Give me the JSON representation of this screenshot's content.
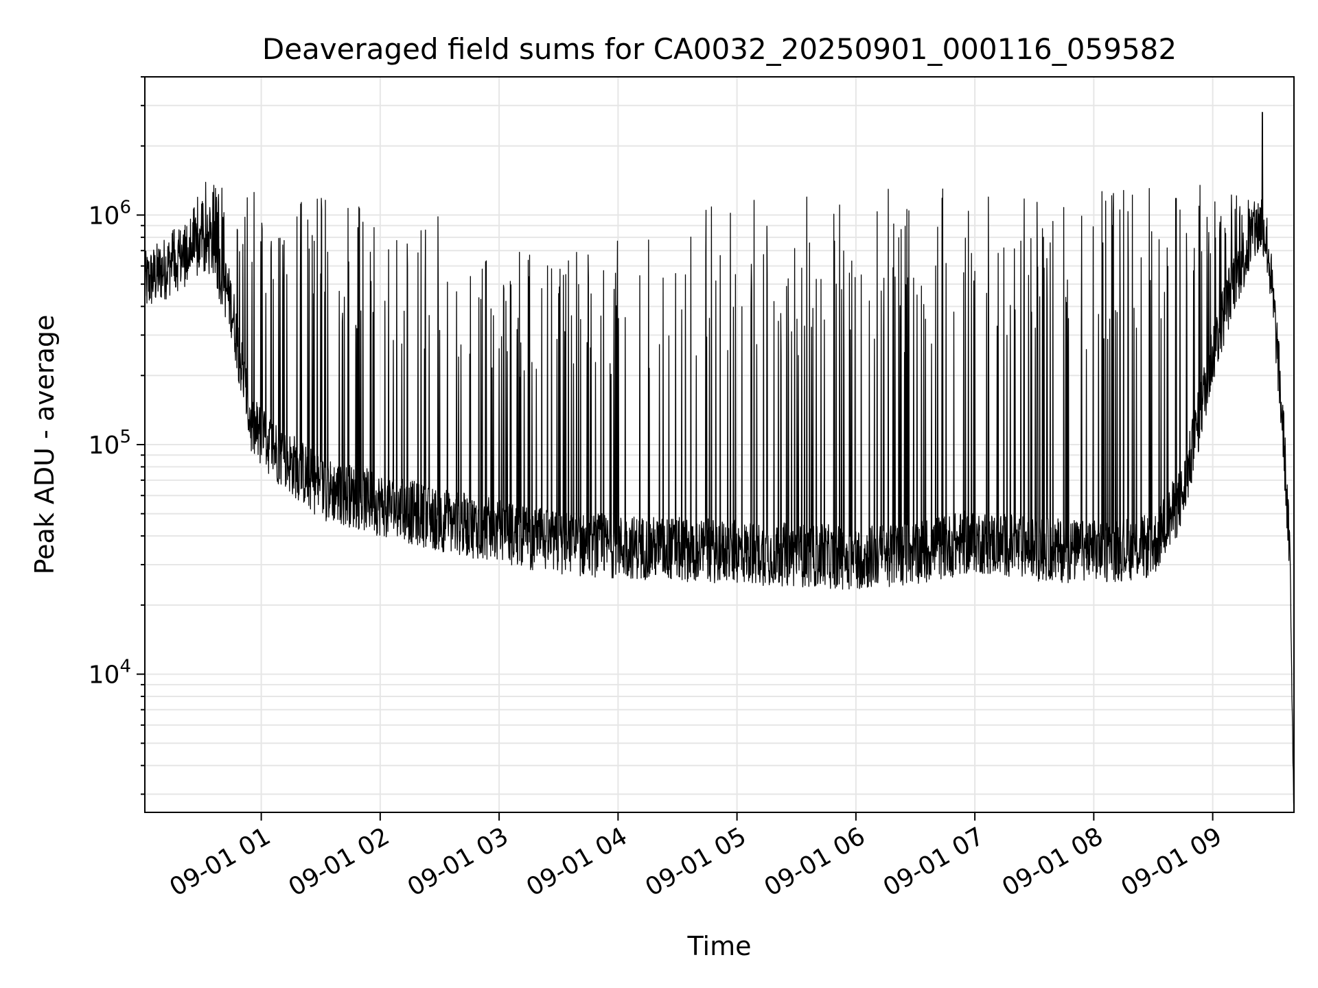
{
  "chart_data": {
    "type": "line",
    "title": "Deaveraged field sums for CA0032_20250901_000116_059582",
    "xlabel": "Time",
    "ylabel": "Peak ADU - average",
    "yscale": "log",
    "ylim": [
      2500,
      4000000
    ],
    "xlim": [
      "2025-09-01 00:01:16",
      "2025-09-01 09:41:00"
    ],
    "grid": "on (major and minor)",
    "line_color": "#000000",
    "grid_color": "#e6e6e6",
    "x_ticks": [
      {
        "t": "2025-09-01 01:00",
        "label": "09-01 01"
      },
      {
        "t": "2025-09-01 02:00",
        "label": "09-01 02"
      },
      {
        "t": "2025-09-01 03:00",
        "label": "09-01 03"
      },
      {
        "t": "2025-09-01 04:00",
        "label": "09-01 04"
      },
      {
        "t": "2025-09-01 05:00",
        "label": "09-01 05"
      },
      {
        "t": "2025-09-01 06:00",
        "label": "09-01 06"
      },
      {
        "t": "2025-09-01 07:00",
        "label": "09-01 07"
      },
      {
        "t": "2025-09-01 08:00",
        "label": "09-01 08"
      },
      {
        "t": "2025-09-01 09:00",
        "label": "09-01 09"
      }
    ],
    "y_ticks": [
      {
        "value": 10000,
        "base": "10",
        "exp": "4"
      },
      {
        "value": 100000,
        "base": "10",
        "exp": "5"
      },
      {
        "value": 1000000,
        "base": "10",
        "exp": "6"
      }
    ],
    "series": [
      {
        "name": "",
        "baseline": [
          {
            "t": "2025-09-01 00:01",
            "value": 500000
          },
          {
            "t": "2025-09-01 00:15",
            "value": 620000
          },
          {
            "t": "2025-09-01 00:25",
            "value": 700000
          },
          {
            "t": "2025-09-01 00:35",
            "value": 750000
          },
          {
            "t": "2025-09-01 00:45",
            "value": 400000
          },
          {
            "t": "2025-09-01 00:55",
            "value": 120000
          },
          {
            "t": "2025-09-01 01:10",
            "value": 90000
          },
          {
            "t": "2025-09-01 01:30",
            "value": 65000
          },
          {
            "t": "2025-09-01 02:00",
            "value": 55000
          },
          {
            "t": "2025-09-01 02:30",
            "value": 47000
          },
          {
            "t": "2025-09-01 03:00",
            "value": 42000
          },
          {
            "t": "2025-09-01 03:30",
            "value": 37000
          },
          {
            "t": "2025-09-01 04:00",
            "value": 36000
          },
          {
            "t": "2025-09-01 04:30",
            "value": 35000
          },
          {
            "t": "2025-09-01 05:00",
            "value": 34000
          },
          {
            "t": "2025-09-01 05:30",
            "value": 33000
          },
          {
            "t": "2025-09-01 06:00",
            "value": 32000
          },
          {
            "t": "2025-09-01 06:30",
            "value": 34000
          },
          {
            "t": "2025-09-01 07:00",
            "value": 38000
          },
          {
            "t": "2025-09-01 07:30",
            "value": 35000
          },
          {
            "t": "2025-09-01 08:00",
            "value": 34000
          },
          {
            "t": "2025-09-01 08:30",
            "value": 36000
          },
          {
            "t": "2025-09-01 08:45",
            "value": 60000
          },
          {
            "t": "2025-09-01 09:00",
            "value": 250000
          },
          {
            "t": "2025-09-01 09:10",
            "value": 500000
          },
          {
            "t": "2025-09-01 09:20",
            "value": 800000
          },
          {
            "t": "2025-09-01 09:25",
            "value": 950000
          },
          {
            "t": "2025-09-01 09:28",
            "value": 700000
          },
          {
            "t": "2025-09-01 09:32",
            "value": 300000
          },
          {
            "t": "2025-09-01 09:36",
            "value": 100000
          },
          {
            "t": "2025-09-01 09:39",
            "value": 30000
          },
          {
            "t": "2025-09-01 09:41",
            "value": 2600
          }
        ],
        "spike_envelope": [
          {
            "t": "2025-09-01 00:15",
            "value": 900000
          },
          {
            "t": "2025-09-01 00:30",
            "value": 1400000
          },
          {
            "t": "2025-09-01 01:00",
            "value": 1300000
          },
          {
            "t": "2025-09-01 01:30",
            "value": 1300000
          },
          {
            "t": "2025-09-01 02:00",
            "value": 1100000
          },
          {
            "t": "2025-09-01 02:30",
            "value": 1000000
          },
          {
            "t": "2025-09-01 03:00",
            "value": 700000
          },
          {
            "t": "2025-09-01 03:30",
            "value": 700000
          },
          {
            "t": "2025-09-01 04:00",
            "value": 800000
          },
          {
            "t": "2025-09-01 04:30",
            "value": 1000000
          },
          {
            "t": "2025-09-01 05:00",
            "value": 1200000
          },
          {
            "t": "2025-09-01 06:00",
            "value": 1300000
          },
          {
            "t": "2025-09-01 07:00",
            "value": 1300000
          },
          {
            "t": "2025-09-01 08:00",
            "value": 1350000
          },
          {
            "t": "2025-09-01 09:00",
            "value": 1400000
          },
          {
            "t": "2025-09-01 09:25",
            "value": 1200000
          }
        ],
        "max_peak": {
          "t": "2025-09-01 09:25",
          "value": 2800000
        }
      }
    ]
  }
}
